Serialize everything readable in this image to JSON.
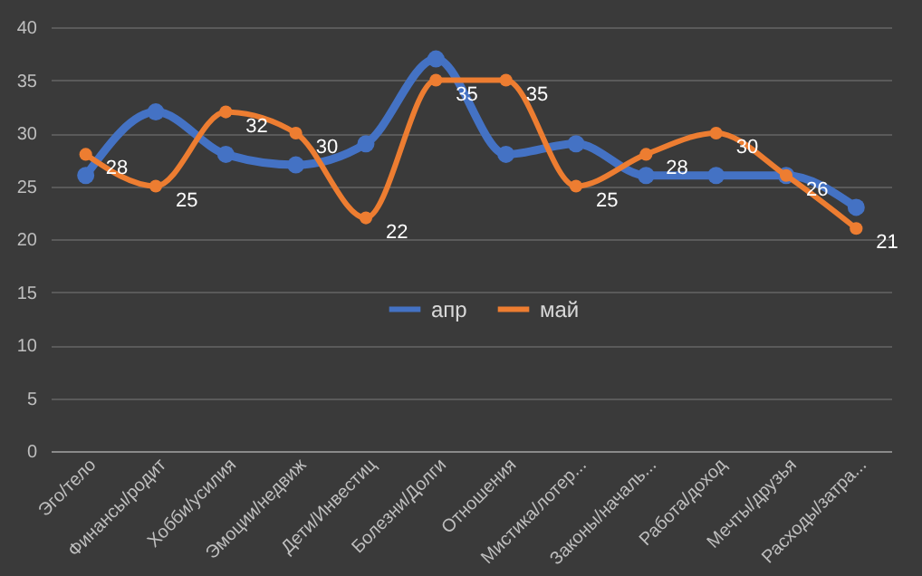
{
  "chart_data": {
    "type": "line",
    "categories": [
      "Эго/тело",
      "Финансы/родит",
      "Хобби/усилия",
      "Эмоции/недвиж",
      "Дети/Инвестиц",
      "Болезни/Долги",
      "Отношения",
      "Мистика/лотер...",
      "Законы/началь...",
      "Работа/доход",
      "Мечты/друзья",
      "Расходы/затра..."
    ],
    "series": [
      {
        "name": "апр",
        "color": "#4472c4",
        "values": [
          26,
          32,
          28,
          27,
          29,
          37,
          28,
          29,
          26,
          26,
          26,
          23
        ]
      },
      {
        "name": "май",
        "color": "#ed7d31",
        "values": [
          28,
          25,
          32,
          30,
          22,
          35,
          35,
          25,
          28,
          30,
          26,
          21
        ],
        "value_labels": [
          "28",
          "25",
          "32",
          "30",
          "22",
          "35",
          "35",
          "25",
          "28",
          "30",
          "26",
          "21"
        ]
      }
    ],
    "ylim": [
      0,
      40
    ],
    "yticks": [
      0,
      5,
      10,
      15,
      20,
      25,
      30,
      35,
      40
    ],
    "grid": "y",
    "legend": "center",
    "marker": "circle",
    "line_style": "solid"
  }
}
